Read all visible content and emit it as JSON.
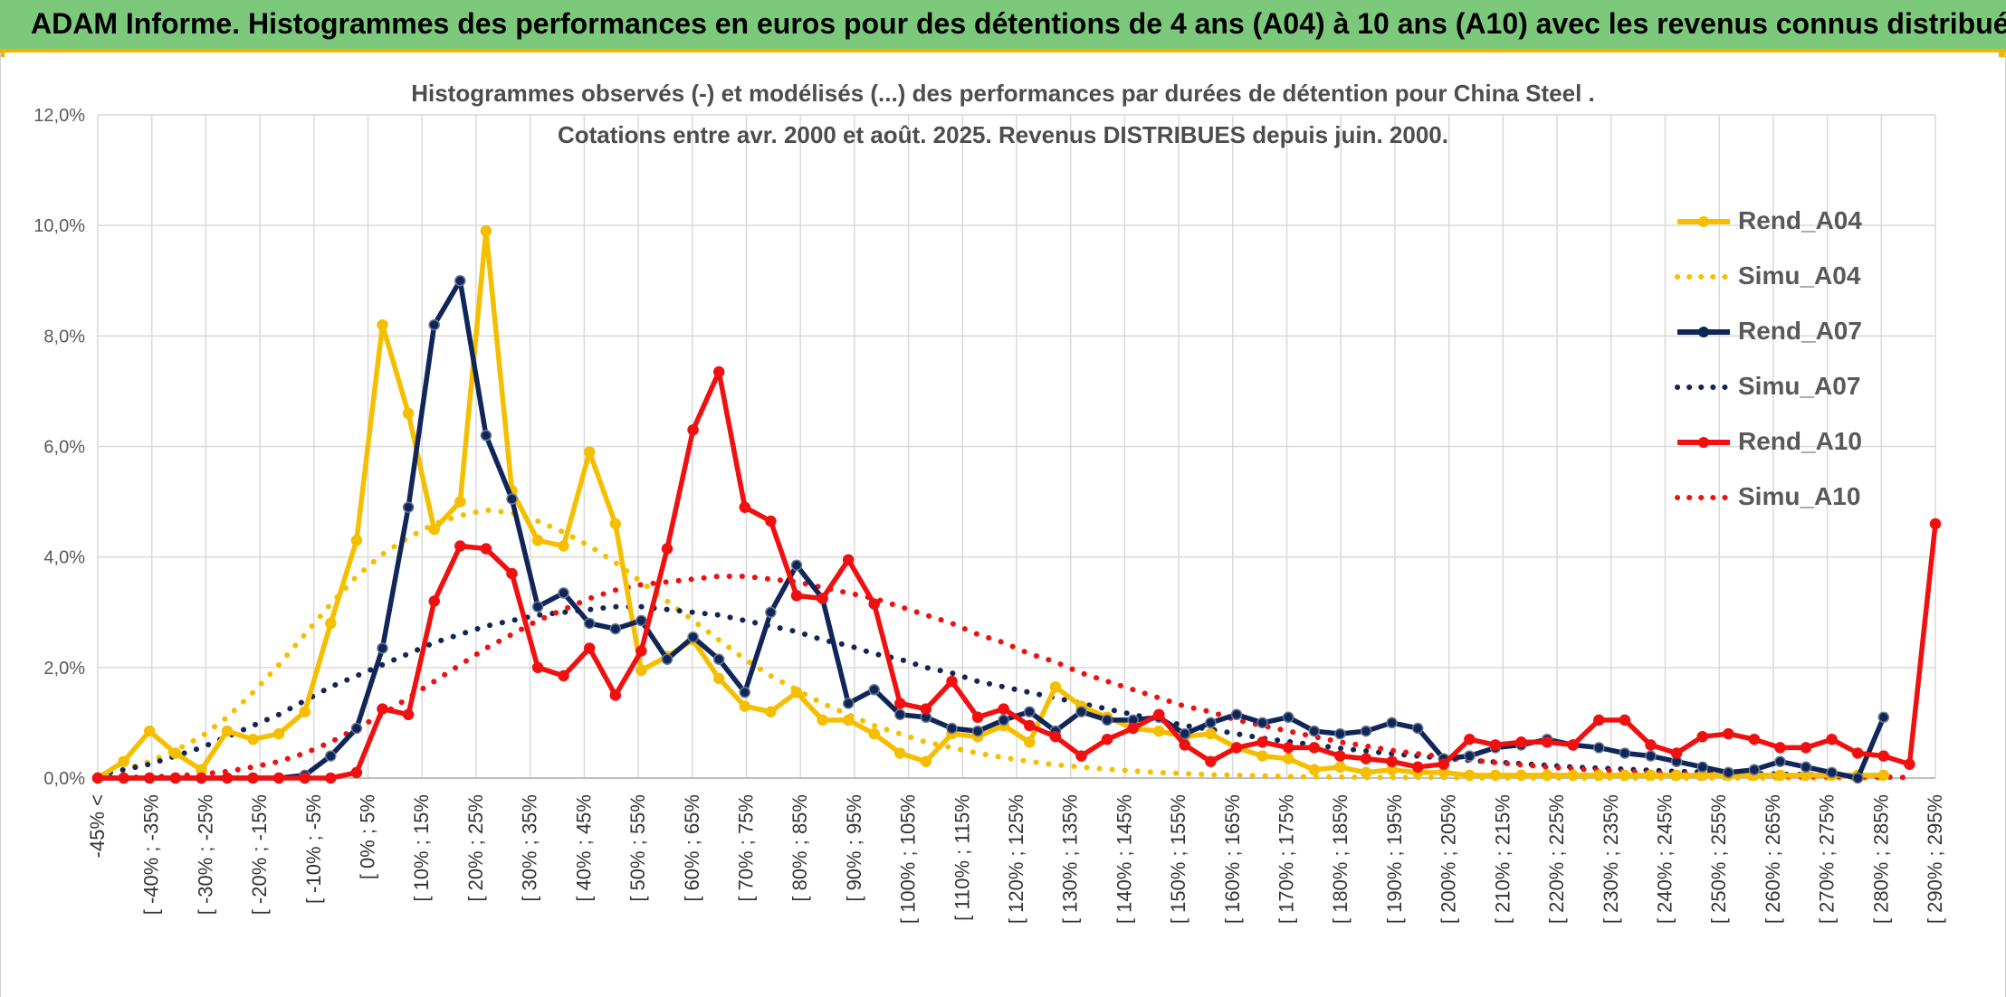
{
  "header": {
    "title": "ADAM Informe. Histogrammes des performances en euros pour des détentions de 4 ans (A04) à 10 ans (A10) avec les revenus connus distribués"
  },
  "chart_data": {
    "type": "line",
    "title": "Histogrammes observés (-) et modélisés (...) des performances par durées de détention pour China Steel .",
    "subtitle": "Cotations entre avr. 2000 et août. 2025. Revenus DISTRIBUES depuis juin. 2000.",
    "xlabel": "",
    "ylabel": "",
    "ylim": [
      0,
      12
    ],
    "y_ticks": [
      "0,0%",
      "2,0%",
      "4,0%",
      "6,0%",
      "8,0%",
      "10,0%",
      "12,0%"
    ],
    "grid": true,
    "legend_position": "right",
    "x_tick_labels": [
      "-45% <",
      "[ -40% ; -35%",
      "[ -30% ; -25%",
      "[ -20% ; -15%",
      "[ -10% ; -5%",
      "[ 0% ; 5%",
      "[ 10% ; 15%",
      "[ 20% ; 25%",
      "[ 30% ; 35%",
      "[ 40% ; 45%",
      "[ 50% ; 55%",
      "[ 60% ; 65%",
      "[ 70% ; 75%",
      "[ 80% ; 85%",
      "[ 90% ; 95%",
      "[ 100% ; 105%",
      "[ 110% ; 115%",
      "[ 120% ; 125%",
      "[ 130% ; 135%",
      "[ 140% ; 145%",
      "[ 150% ; 155%",
      "[ 160% ; 165%",
      "[ 170% ; 175%",
      "[ 180% ; 185%",
      "[ 190% ; 195%",
      "[ 200% ; 205%",
      "[ 210% ; 215%",
      "[ 220% ; 225%",
      "[ 230% ; 235%",
      "[ 240% ; 245%",
      "[ 250% ; 255%",
      "[ 260% ; 265%",
      "[ 270% ; 275%",
      "[ 280% ; 285%",
      "[ 290% ; 295%"
    ],
    "series": [
      {
        "name": "Rend_A04",
        "style": "solid",
        "color": "#f5bf00",
        "values": [
          0,
          0.3,
          0.85,
          0.45,
          0.15,
          0.85,
          0.7,
          0.8,
          1.2,
          2.8,
          4.3,
          8.2,
          6.6,
          4.5,
          5,
          9.9,
          5.2,
          4.3,
          4.2,
          5.9,
          4.6,
          1.95,
          2.2,
          2.5,
          1.8,
          1.3,
          1.2,
          1.55,
          1.05,
          1.05,
          0.8,
          0.45,
          0.3,
          0.8,
          0.75,
          0.95,
          0.65,
          1.65,
          1.3,
          1.1,
          0.9,
          0.85,
          0.75,
          0.8,
          0.55,
          0.4,
          0.35,
          0.15,
          0.2,
          0.1,
          0.15,
          0.1,
          0.1,
          0.05,
          0.05,
          0.05,
          0.05,
          0.05,
          0.05,
          0.05,
          0.05,
          0.05,
          0.05,
          0.05,
          0.05,
          0.05,
          0.05,
          0.05,
          0.05,
          0.05
        ]
      },
      {
        "name": "Simu_A04",
        "style": "dotted",
        "color": "#f5bf00",
        "values": [
          0.05,
          0.15,
          0.3,
          0.5,
          0.75,
          1.1,
          1.55,
          2.05,
          2.6,
          3.15,
          3.65,
          4.05,
          4.35,
          4.6,
          4.75,
          4.85,
          4.8,
          4.65,
          4.45,
          4.2,
          3.9,
          3.55,
          3.2,
          2.85,
          2.5,
          2.15,
          1.85,
          1.6,
          1.35,
          1.15,
          0.95,
          0.8,
          0.65,
          0.55,
          0.45,
          0.37,
          0.3,
          0.24,
          0.2,
          0.16,
          0.13,
          0.1,
          0.08,
          0.06,
          0.05,
          0.04,
          0.03,
          0.02,
          0.02,
          0.01,
          0.01,
          0.01,
          0.01,
          0,
          0,
          0,
          0,
          0,
          0,
          0,
          0,
          0,
          0,
          0,
          0,
          0,
          0,
          0,
          0,
          0
        ]
      },
      {
        "name": "Rend_A07",
        "style": "solid",
        "color": "#10265a",
        "values": [
          0,
          0,
          0,
          0,
          0,
          0,
          0,
          0,
          0.05,
          0.4,
          0.9,
          2.35,
          4.9,
          8.2,
          9,
          6.2,
          5.05,
          3.1,
          3.35,
          2.8,
          2.7,
          2.85,
          2.15,
          2.55,
          2.15,
          1.55,
          3,
          3.85,
          3.25,
          1.35,
          1.6,
          1.15,
          1.1,
          0.9,
          0.85,
          1.05,
          1.2,
          0.85,
          1.2,
          1.05,
          1.05,
          1.1,
          0.8,
          1,
          1.15,
          1,
          1.1,
          0.85,
          0.8,
          0.85,
          1,
          0.9,
          0.35,
          0.4,
          0.55,
          0.6,
          0.7,
          0.6,
          0.55,
          0.45,
          0.4,
          0.3,
          0.2,
          0.1,
          0.15,
          0.3,
          0.2,
          0.1,
          0,
          1.1
        ]
      },
      {
        "name": "Simu_A07",
        "style": "dotted",
        "color": "#10265a",
        "values": [
          0.05,
          0.15,
          0.25,
          0.4,
          0.55,
          0.75,
          0.95,
          1.15,
          1.4,
          1.65,
          1.85,
          2.05,
          2.25,
          2.45,
          2.6,
          2.75,
          2.85,
          2.95,
          3,
          3.05,
          3.1,
          3.1,
          3.05,
          3,
          2.95,
          2.85,
          2.75,
          2.65,
          2.5,
          2.4,
          2.25,
          2.15,
          2,
          1.9,
          1.75,
          1.65,
          1.55,
          1.45,
          1.35,
          1.25,
          1.15,
          1.05,
          0.95,
          0.88,
          0.8,
          0.72,
          0.66,
          0.6,
          0.54,
          0.49,
          0.44,
          0.4,
          0.36,
          0.32,
          0.29,
          0.26,
          0.23,
          0.2,
          0.18,
          0.16,
          0.14,
          0.12,
          0.11,
          0.1,
          0.08,
          0.07,
          0.06,
          0.05,
          0.05,
          0.04
        ]
      },
      {
        "name": "Rend_A10",
        "style": "solid",
        "color": "#f01010",
        "values": [
          0,
          0,
          0,
          0,
          0,
          0,
          0,
          0,
          0,
          0,
          0.1,
          1.25,
          1.15,
          3.2,
          4.2,
          4.15,
          3.7,
          2,
          1.85,
          2.35,
          1.5,
          2.3,
          4.15,
          6.3,
          7.35,
          4.9,
          4.65,
          3.3,
          3.25,
          3.95,
          3.15,
          1.35,
          1.25,
          1.75,
          1.1,
          1.25,
          0.95,
          0.75,
          0.4,
          0.7,
          0.9,
          1.15,
          0.6,
          0.3,
          0.55,
          0.65,
          0.55,
          0.55,
          0.4,
          0.35,
          0.3,
          0.2,
          0.25,
          0.7,
          0.6,
          0.65,
          0.65,
          0.6,
          1.05,
          1.05,
          0.6,
          0.45,
          0.75,
          0.8,
          0.7,
          0.55,
          0.55,
          0.7,
          0.45,
          0.4,
          0.25,
          4.6
        ]
      },
      {
        "name": "Simu_A10",
        "style": "dotted",
        "color": "#f01010",
        "values": [
          0,
          0.01,
          0.02,
          0.04,
          0.07,
          0.12,
          0.2,
          0.3,
          0.45,
          0.65,
          0.9,
          1.15,
          1.45,
          1.75,
          2.05,
          2.35,
          2.6,
          2.85,
          3.05,
          3.25,
          3.4,
          3.5,
          3.55,
          3.6,
          3.65,
          3.65,
          3.6,
          3.55,
          3.45,
          3.35,
          3.25,
          3.1,
          2.95,
          2.8,
          2.6,
          2.45,
          2.25,
          2.1,
          1.9,
          1.75,
          1.6,
          1.45,
          1.3,
          1.2,
          1.05,
          0.95,
          0.85,
          0.75,
          0.65,
          0.58,
          0.5,
          0.44,
          0.38,
          0.33,
          0.28,
          0.24,
          0.2,
          0.17,
          0.14,
          0.12,
          0.1,
          0.08,
          0.07,
          0.06,
          0.05,
          0.04,
          0.03,
          0.03,
          0.02,
          0.02,
          0.01
        ]
      }
    ]
  }
}
